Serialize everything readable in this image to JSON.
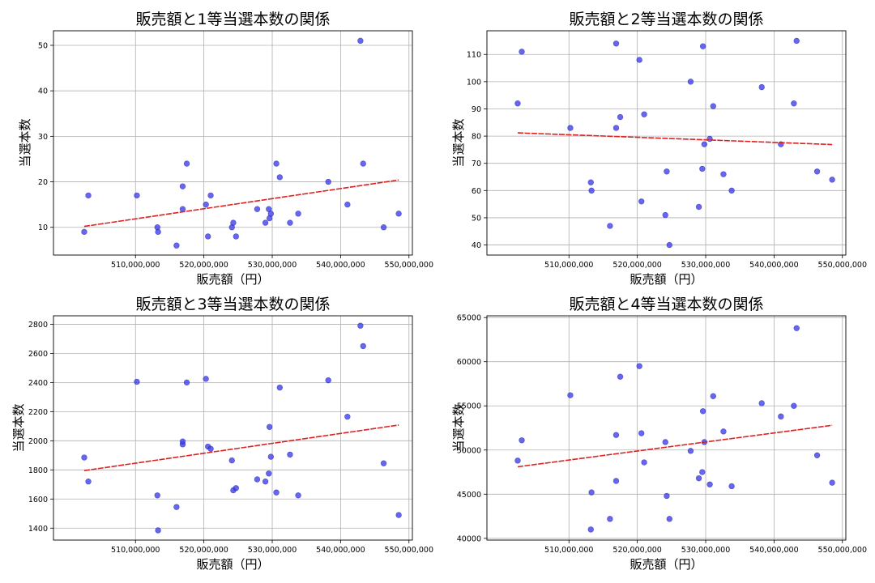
{
  "colors": {
    "points": "#3b3bea",
    "trend": "#dd2222",
    "grid": "#b0b0b0"
  },
  "chart_data": [
    {
      "type": "scatter",
      "title": "販売額と1等当選本数の関係",
      "xlabel": "販売額（円）",
      "ylabel": "当選本数",
      "xlim": [
        498000000,
        550500000
      ],
      "ylim": [
        3.9,
        53.2
      ],
      "xticks": [
        510000000,
        520000000,
        530000000,
        540000000,
        550000000
      ],
      "xtick_labels": [
        "510,000,000",
        "520,000,000",
        "530,000,000",
        "540,000,000",
        "550,000,000"
      ],
      "yticks": [
        10,
        20,
        30,
        40,
        50
      ],
      "ytick_labels": [
        "10",
        "20",
        "30",
        "40",
        "50"
      ],
      "grid": true,
      "trend": {
        "x": [
          502500000,
          548500000
        ],
        "y": [
          10.2,
          20.4
        ]
      },
      "series": [
        {
          "x": [
            502500000,
            503100000,
            510200000,
            513200000,
            513300000,
            516000000,
            516900000,
            516900000,
            517500000,
            520300000,
            520600000,
            521000000,
            524100000,
            524300000,
            524700000,
            527800000,
            529000000,
            529500000,
            529600000,
            529800000,
            530600000,
            531100000,
            532600000,
            533800000,
            538200000,
            541000000,
            542900000,
            543300000,
            546300000,
            548500000
          ],
          "y": [
            9,
            17,
            17,
            10,
            9,
            6,
            19,
            14,
            24,
            15,
            8,
            17,
            10,
            11,
            8,
            14,
            11,
            14,
            12,
            13,
            24,
            21,
            11,
            13,
            20,
            15,
            51,
            24,
            10,
            13
          ]
        }
      ]
    },
    {
      "type": "scatter",
      "title": "販売額と2等当選本数の関係",
      "xlabel": "販売額（円）",
      "ylabel": "当選本数",
      "xlim": [
        498000000,
        550500000
      ],
      "ylim": [
        36.3,
        118.7
      ],
      "xticks": [
        510000000,
        520000000,
        530000000,
        540000000,
        550000000
      ],
      "xtick_labels": [
        "510,000,000",
        "520,000,000",
        "530,000,000",
        "540,000,000",
        "550,000,000"
      ],
      "yticks": [
        40,
        50,
        60,
        70,
        80,
        90,
        100,
        110
      ],
      "ytick_labels": [
        "40",
        "50",
        "60",
        "70",
        "80",
        "90",
        "100",
        "110"
      ],
      "grid": true,
      "trend": {
        "x": [
          502500000,
          548500000
        ],
        "y": [
          81.2,
          76.9
        ]
      },
      "series": [
        {
          "x": [
            502500000,
            503100000,
            510200000,
            513200000,
            513300000,
            516000000,
            516900000,
            516900000,
            517500000,
            520300000,
            520600000,
            521000000,
            524100000,
            524300000,
            524700000,
            527800000,
            529000000,
            529500000,
            529600000,
            529800000,
            530600000,
            531100000,
            532600000,
            533800000,
            538200000,
            541000000,
            542900000,
            543300000,
            546300000,
            548500000
          ],
          "y": [
            92,
            111,
            83,
            63,
            60,
            47,
            114,
            83,
            87,
            108,
            56,
            88,
            51,
            67,
            40,
            100,
            54,
            68,
            113,
            77,
            79,
            91,
            66,
            60,
            98,
            77,
            92,
            115,
            67,
            64
          ]
        }
      ]
    },
    {
      "type": "scatter",
      "title": "販売額と3等当選本数の関係",
      "xlabel": "販売額（円）",
      "ylabel": "当選本数",
      "xlim": [
        498000000,
        550500000
      ],
      "ylim": [
        1318,
        2858
      ],
      "xticks": [
        510000000,
        520000000,
        530000000,
        540000000,
        550000000
      ],
      "xtick_labels": [
        "510,000,000",
        "520,000,000",
        "530,000,000",
        "540,000,000",
        "550,000,000"
      ],
      "yticks": [
        1400,
        1600,
        1800,
        2000,
        2200,
        2400,
        2600,
        2800
      ],
      "ytick_labels": [
        "1400",
        "1600",
        "1800",
        "2000",
        "2200",
        "2400",
        "2600",
        "2800"
      ],
      "grid": true,
      "trend": {
        "x": [
          502500000,
          548500000
        ],
        "y": [
          1795,
          2108
        ]
      },
      "series": [
        {
          "x": [
            502500000,
            503100000,
            510200000,
            513200000,
            513300000,
            516000000,
            516900000,
            516900000,
            517500000,
            520300000,
            520600000,
            521000000,
            524100000,
            524300000,
            524700000,
            527800000,
            529000000,
            529500000,
            529600000,
            529800000,
            530600000,
            531100000,
            532600000,
            533800000,
            538200000,
            541000000,
            542900000,
            543300000,
            546300000,
            548500000
          ],
          "y": [
            1885,
            1720,
            2405,
            1625,
            1385,
            1545,
            1975,
            1995,
            2400,
            2425,
            1960,
            1945,
            1865,
            1660,
            1675,
            1735,
            1720,
            1775,
            2095,
            1890,
            1645,
            2365,
            1905,
            1625,
            2415,
            2165,
            2790,
            2650,
            1845,
            1490
          ]
        }
      ]
    },
    {
      "type": "scatter",
      "title": "販売額と4等当選本数の関係",
      "xlabel": "販売額（円）",
      "ylabel": "当選本数",
      "xlim": [
        498000000,
        550500000
      ],
      "ylim": [
        39800,
        65200
      ],
      "xticks": [
        510000000,
        520000000,
        530000000,
        540000000,
        550000000
      ],
      "xtick_labels": [
        "510,000,000",
        "520,000,000",
        "530,000,000",
        "540,000,000",
        "550,000,000"
      ],
      "yticks": [
        40000,
        45000,
        50000,
        55000,
        60000,
        65000
      ],
      "ytick_labels": [
        "40000",
        "45000",
        "50000",
        "55000",
        "60000",
        "65000"
      ],
      "grid": true,
      "trend": {
        "x": [
          502500000,
          548500000
        ],
        "y": [
          48100,
          52800
        ]
      },
      "series": [
        {
          "x": [
            502500000,
            503100000,
            510200000,
            513200000,
            513300000,
            516000000,
            516900000,
            516900000,
            517500000,
            520300000,
            520600000,
            521000000,
            524100000,
            524300000,
            524700000,
            527800000,
            529000000,
            529500000,
            529600000,
            529800000,
            530600000,
            531100000,
            532600000,
            533800000,
            538200000,
            541000000,
            542900000,
            543300000,
            546300000,
            548500000
          ],
          "y": [
            48800,
            51100,
            56200,
            41000,
            45200,
            42200,
            51700,
            46500,
            58300,
            59500,
            51900,
            48600,
            50900,
            44800,
            42200,
            49900,
            46800,
            47500,
            54400,
            50900,
            46100,
            56100,
            52100,
            45900,
            55300,
            53800,
            55000,
            63800,
            49400,
            46300
          ]
        }
      ]
    }
  ]
}
